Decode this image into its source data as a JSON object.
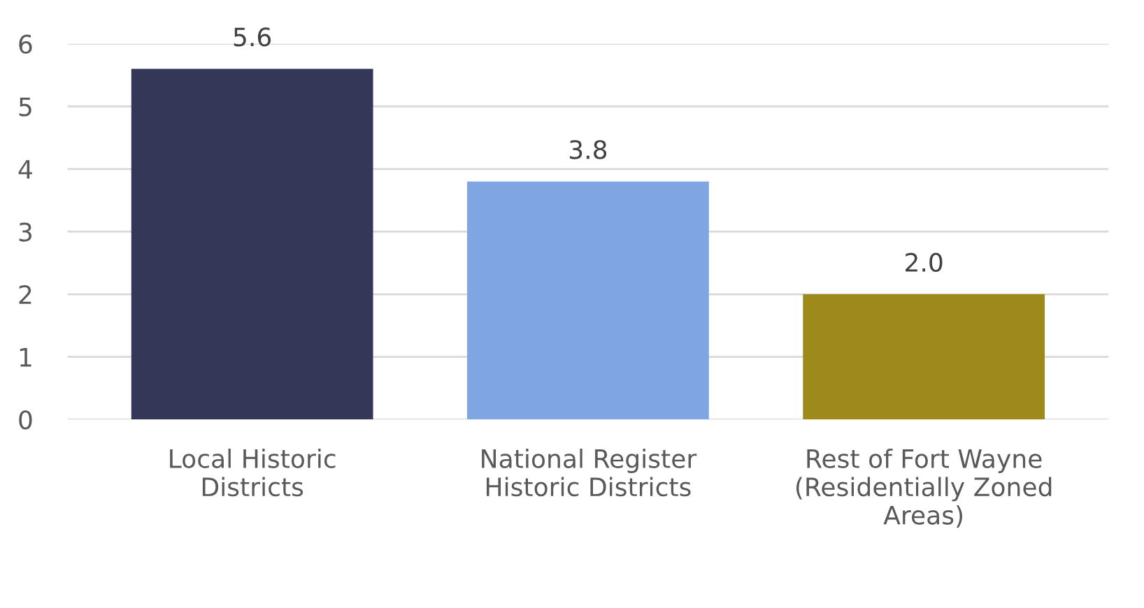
{
  "chart_data": {
    "type": "bar",
    "categories": [
      "Local Historic\nDistricts",
      "National Register\nHistoric Districts",
      "Rest of Fort Wayne\n(Residentially Zoned\nAreas)"
    ],
    "values": [
      5.6,
      3.8,
      2.0
    ],
    "colors": [
      "#343757",
      "#7fa6e3",
      "#9e8a1a"
    ],
    "ylim": [
      0,
      6
    ],
    "yticks": [
      0,
      1,
      2,
      3,
      4,
      5,
      6
    ],
    "grid": "y",
    "data_labels": true,
    "value_labels": [
      "5.6",
      "3.8",
      "2.0"
    ]
  }
}
